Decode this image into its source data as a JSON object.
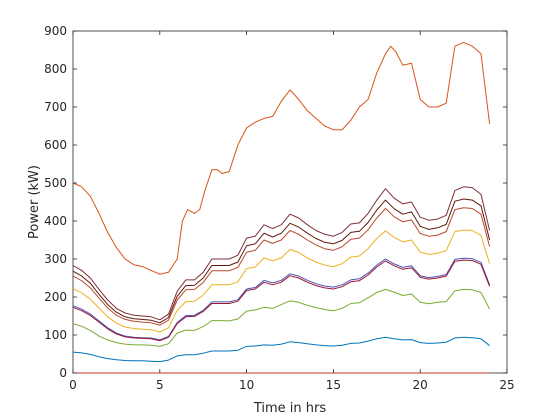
{
  "chart_data": {
    "type": "line",
    "title": "",
    "xlabel": "Time in hrs",
    "ylabel": "Power (kW)",
    "xlim": [
      0,
      25
    ],
    "ylim": [
      0,
      900
    ],
    "xticks": [
      0,
      5,
      10,
      15,
      20,
      25
    ],
    "yticks": [
      0,
      100,
      200,
      300,
      400,
      500,
      600,
      700,
      800,
      900
    ],
    "grid": false,
    "legend": "none",
    "series": [
      {
        "color": "#d95319",
        "x": [
          0,
          0.5,
          1,
          1.5,
          2,
          2.5,
          3,
          3.5,
          4,
          4.5,
          5,
          5.5,
          6,
          6.3,
          6.6,
          7,
          7.3,
          7.6,
          8,
          8.3,
          8.6,
          9,
          9.5,
          10,
          10.5,
          11,
          11.5,
          12,
          12.5,
          13,
          13.5,
          14,
          14.5,
          15,
          15.5,
          16,
          16.5,
          17,
          17.5,
          18,
          18.3,
          18.6,
          19,
          19.5,
          20,
          20.5,
          21,
          21.5,
          22,
          22.5,
          23,
          23.5,
          24
        ],
        "y": [
          500,
          490,
          465,
          420,
          370,
          330,
          300,
          285,
          280,
          270,
          260,
          265,
          300,
          400,
          430,
          420,
          430,
          480,
          535,
          535,
          525,
          530,
          600,
          645,
          660,
          670,
          675,
          715,
          745,
          720,
          690,
          670,
          650,
          640,
          640,
          665,
          700,
          720,
          790,
          840,
          860,
          845,
          810,
          815,
          720,
          700,
          700,
          710,
          860,
          870,
          860,
          840,
          655
        ]
      },
      {
        "color": "#7e2f3a",
        "x": [
          0,
          0.5,
          1,
          1.5,
          2,
          2.5,
          3,
          3.5,
          4,
          4.5,
          5,
          5.5,
          6,
          6.5,
          7,
          7.5,
          8,
          8.5,
          9,
          9.5,
          10,
          10.5,
          11,
          11.5,
          12,
          12.5,
          13,
          13.5,
          14,
          14.5,
          15,
          15.5,
          16,
          16.5,
          17,
          17.5,
          18,
          18.5,
          19,
          19.5,
          20,
          20.5,
          21,
          21.5,
          22,
          22.5,
          23,
          23.5,
          24
        ],
        "y": [
          283,
          270,
          250,
          220,
          192,
          170,
          158,
          152,
          150,
          148,
          140,
          155,
          215,
          245,
          245,
          265,
          300,
          300,
          300,
          310,
          355,
          360,
          390,
          380,
          390,
          418,
          408,
          390,
          375,
          365,
          360,
          370,
          392,
          395,
          420,
          455,
          485,
          460,
          445,
          450,
          410,
          402,
          405,
          415,
          480,
          490,
          488,
          470,
          375
        ]
      },
      {
        "color": "#5e1a0a",
        "x": [
          0,
          0.5,
          1,
          1.5,
          2,
          2.5,
          3,
          3.5,
          4,
          4.5,
          5,
          5.5,
          6,
          6.5,
          7,
          7.5,
          8,
          8.5,
          9,
          9.5,
          10,
          10.5,
          11,
          11.5,
          12,
          12.5,
          13,
          13.5,
          14,
          14.5,
          15,
          15.5,
          16,
          16.5,
          17,
          17.5,
          18,
          18.5,
          19,
          19.5,
          20,
          20.5,
          21,
          21.5,
          22,
          22.5,
          23,
          23.5,
          24
        ],
        "y": [
          268,
          255,
          236,
          207,
          180,
          160,
          148,
          143,
          141,
          139,
          132,
          146,
          202,
          230,
          231,
          250,
          283,
          283,
          283,
          292,
          335,
          340,
          368,
          358,
          368,
          394,
          384,
          368,
          354,
          344,
          340,
          349,
          370,
          373,
          396,
          429,
          455,
          432,
          418,
          424,
          386,
          378,
          382,
          391,
          452,
          458,
          455,
          440,
          350
        ]
      },
      {
        "color": "#b84a2e",
        "x": [
          0,
          0.5,
          1,
          1.5,
          2,
          2.5,
          3,
          3.5,
          4,
          4.5,
          5,
          5.5,
          6,
          6.5,
          7,
          7.5,
          8,
          8.5,
          9,
          9.5,
          10,
          10.5,
          11,
          11.5,
          12,
          12.5,
          13,
          13.5,
          14,
          14.5,
          15,
          15.5,
          16,
          16.5,
          17,
          17.5,
          18,
          18.5,
          19,
          19.5,
          20,
          20.5,
          21,
          21.5,
          22,
          22.5,
          23,
          23.5,
          24
        ],
        "y": [
          255,
          243,
          224,
          197,
          171,
          152,
          141,
          136,
          134,
          132,
          126,
          139,
          192,
          219,
          220,
          238,
          269,
          269,
          269,
          278,
          318,
          323,
          350,
          341,
          350,
          375,
          365,
          350,
          337,
          327,
          323,
          332,
          352,
          355,
          377,
          408,
          433,
          411,
          398,
          403,
          367,
          360,
          363,
          372,
          430,
          435,
          433,
          418,
          333
        ]
      },
      {
        "color": "#edb120",
        "x": [
          0,
          0.5,
          1,
          1.5,
          2,
          2.5,
          3,
          3.5,
          4,
          4.5,
          5,
          5.5,
          6,
          6.5,
          7,
          7.5,
          8,
          8.5,
          9,
          9.5,
          10,
          10.5,
          11,
          11.5,
          12,
          12.5,
          13,
          13.5,
          14,
          14.5,
          15,
          15.5,
          16,
          16.5,
          17,
          17.5,
          18,
          18.5,
          19,
          19.5,
          20,
          20.5,
          21,
          21.5,
          22,
          22.5,
          23,
          23.5,
          24
        ],
        "y": [
          222,
          211,
          194,
          171,
          148,
          131,
          121,
          117,
          115,
          114,
          108,
          119,
          165,
          188,
          189,
          205,
          232,
          232,
          232,
          240,
          275,
          279,
          303,
          295,
          303,
          325,
          317,
          303,
          292,
          284,
          280,
          288,
          305,
          308,
          327,
          354,
          374,
          357,
          345,
          350,
          318,
          312,
          315,
          322,
          372,
          376,
          375,
          362,
          288
        ]
      },
      {
        "color": "#4a56b8",
        "x": [
          0,
          0.5,
          1,
          1.5,
          2,
          2.5,
          3,
          3.5,
          4,
          4.5,
          5,
          5.5,
          6,
          6.5,
          7,
          7.5,
          8,
          8.5,
          9,
          9.5,
          10,
          10.5,
          11,
          11.5,
          12,
          12.5,
          13,
          13.5,
          14,
          14.5,
          15,
          15.5,
          16,
          16.5,
          17,
          17.5,
          18,
          18.5,
          19,
          19.5,
          20,
          20.5,
          21,
          21.5,
          22,
          22.5,
          23,
          23.5,
          24
        ],
        "y": [
          177,
          168,
          155,
          137,
          119,
          105,
          97,
          94,
          93,
          92,
          87,
          96,
          133,
          151,
          152,
          165,
          187,
          187,
          187,
          193,
          221,
          225,
          244,
          237,
          244,
          261,
          255,
          244,
          235,
          229,
          226,
          232,
          245,
          248,
          263,
          284,
          300,
          287,
          278,
          282,
          256,
          251,
          254,
          259,
          299,
          302,
          301,
          291,
          232
        ]
      },
      {
        "color": "#a2142f",
        "x": [
          0,
          0.5,
          1,
          1.5,
          2,
          2.5,
          3,
          3.5,
          4,
          4.5,
          5,
          5.5,
          6,
          6.5,
          7,
          7.5,
          8,
          8.5,
          9,
          9.5,
          10,
          10.5,
          11,
          11.5,
          12,
          12.5,
          13,
          13.5,
          14,
          14.5,
          15,
          15.5,
          16,
          16.5,
          17,
          17.5,
          18,
          18.5,
          19,
          19.5,
          20,
          20.5,
          21,
          21.5,
          22,
          22.5,
          23,
          23.5,
          24
        ],
        "y": [
          173,
          164,
          151,
          134,
          116,
          103,
          95,
          92,
          91,
          90,
          85,
          94,
          130,
          148,
          149,
          162,
          183,
          183,
          183,
          189,
          217,
          221,
          239,
          232,
          239,
          256,
          250,
          239,
          230,
          224,
          221,
          227,
          240,
          243,
          258,
          279,
          295,
          282,
          273,
          277,
          252,
          247,
          250,
          255,
          294,
          297,
          296,
          286,
          228
        ]
      },
      {
        "color": "#77ac30",
        "x": [
          0,
          0.5,
          1,
          1.5,
          2,
          2.5,
          3,
          3.5,
          4,
          4.5,
          5,
          5.5,
          6,
          6.5,
          7,
          7.5,
          8,
          8.5,
          9,
          9.5,
          10,
          10.5,
          11,
          11.5,
          12,
          12.5,
          13,
          13.5,
          14,
          14.5,
          15,
          15.5,
          16,
          16.5,
          17,
          17.5,
          18,
          18.5,
          19,
          19.5,
          20,
          20.5,
          21,
          21.5,
          22,
          22.5,
          23,
          23.5,
          24
        ],
        "y": [
          130,
          123,
          112,
          97,
          87,
          80,
          76,
          74,
          74,
          73,
          70,
          77,
          105,
          113,
          112,
          122,
          138,
          138,
          137,
          142,
          163,
          166,
          173,
          170,
          180,
          190,
          186,
          178,
          172,
          167,
          164,
          170,
          183,
          185,
          198,
          212,
          220,
          213,
          204,
          208,
          186,
          182,
          186,
          188,
          216,
          220,
          219,
          212,
          168
        ]
      },
      {
        "color": "#0072bd",
        "x": [
          0,
          0.5,
          1,
          1.5,
          2,
          2.5,
          3,
          3.5,
          4,
          4.5,
          5,
          5.5,
          6,
          6.5,
          7,
          7.5,
          8,
          8.5,
          9,
          9.5,
          10,
          10.5,
          11,
          11.5,
          12,
          12.5,
          13,
          13.5,
          14,
          14.5,
          15,
          15.5,
          16,
          16.5,
          17,
          17.5,
          18,
          18.5,
          19,
          19.5,
          20,
          20.5,
          21,
          21.5,
          22,
          22.5,
          23,
          23.5,
          24
        ],
        "y": [
          55,
          53,
          49,
          43,
          38,
          35,
          33,
          32,
          32,
          31,
          30,
          34,
          45,
          48,
          48,
          52,
          58,
          58,
          58,
          60,
          70,
          71,
          74,
          73,
          76,
          82,
          80,
          77,
          74,
          72,
          71,
          73,
          78,
          79,
          84,
          90,
          94,
          90,
          87,
          88,
          80,
          78,
          79,
          81,
          92,
          94,
          93,
          90,
          72
        ]
      },
      {
        "color": "#c0392b",
        "x": [
          0,
          24
        ],
        "y": [
          0,
          0
        ]
      }
    ]
  }
}
